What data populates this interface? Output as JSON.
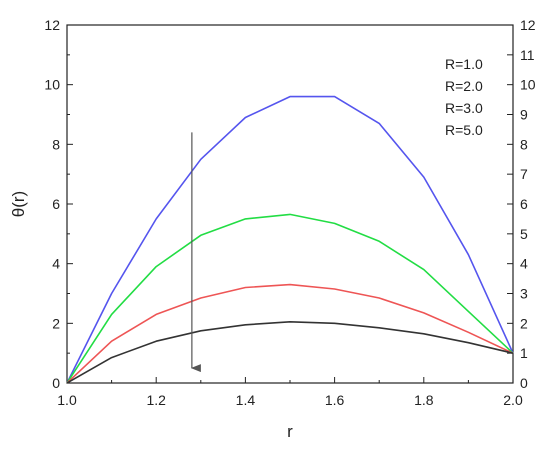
{
  "chart_data": {
    "type": "line",
    "xlabel": "r",
    "ylabel": "θ(r)",
    "xlim": [
      1.0,
      2.0
    ],
    "ylim": [
      0,
      12
    ],
    "y2lim": [
      0,
      12
    ],
    "x_ticks": [
      "1.0",
      "1.2",
      "1.4",
      "1.6",
      "1.8",
      "2.0"
    ],
    "y_ticks": [
      "0",
      "2",
      "4",
      "6",
      "8",
      "10",
      "12"
    ],
    "y2_ticks": [
      "0",
      "1",
      "2",
      "3",
      "4",
      "5",
      "6",
      "7",
      "8",
      "9",
      "10",
      "11",
      "12"
    ],
    "grid": false,
    "legend_position": "top-right",
    "legend": [
      "R=1.0",
      "R=2.0",
      "R=3.0",
      "R=5.0"
    ],
    "x": [
      1.0,
      1.1,
      1.2,
      1.3,
      1.4,
      1.5,
      1.6,
      1.7,
      1.8,
      1.9,
      2.0
    ],
    "series": [
      {
        "name": "R=1.0",
        "color": "#5555ee",
        "values": [
          0,
          3.0,
          5.5,
          7.5,
          8.9,
          9.6,
          9.6,
          8.7,
          6.9,
          4.3,
          1.0
        ]
      },
      {
        "name": "R=2.0",
        "color": "#22dd44",
        "values": [
          0,
          2.3,
          3.9,
          4.95,
          5.5,
          5.65,
          5.35,
          4.75,
          3.8,
          2.4,
          1.0
        ]
      },
      {
        "name": "R=3.0",
        "color": "#ee5555",
        "values": [
          0,
          1.4,
          2.3,
          2.85,
          3.2,
          3.3,
          3.15,
          2.85,
          2.35,
          1.7,
          1.0
        ]
      },
      {
        "name": "R=5.0",
        "color": "#333333",
        "values": [
          0,
          0.85,
          1.4,
          1.75,
          1.95,
          2.05,
          2.0,
          1.85,
          1.65,
          1.35,
          1.0
        ]
      }
    ],
    "annotation": {
      "type": "arrow",
      "direction": "down",
      "x": 1.28,
      "y_from": 8.4,
      "y_to": 0.5,
      "color": "#555555"
    }
  }
}
